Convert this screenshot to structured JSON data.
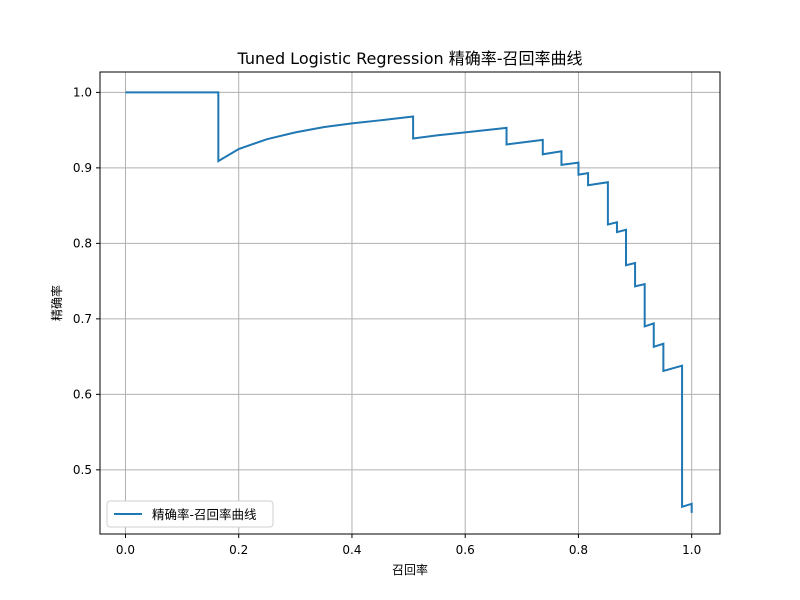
{
  "chart_data": {
    "type": "line",
    "title": "Tuned Logistic Regression 精确率-召回率曲线",
    "xlabel": "召回率",
    "ylabel": "精确率",
    "xlim": [
      -0.045,
      1.05
    ],
    "ylim": [
      0.415,
      1.027
    ],
    "xticks": [
      0.0,
      0.2,
      0.4,
      0.6,
      0.8,
      1.0
    ],
    "xtick_labels": [
      "0.0",
      "0.2",
      "0.4",
      "0.6",
      "0.8",
      "1.0"
    ],
    "yticks": [
      0.5,
      0.6,
      0.7,
      0.8,
      0.9,
      1.0
    ],
    "ytick_labels": [
      "0.5",
      "0.6",
      "0.7",
      "0.8",
      "0.9",
      "1.0"
    ],
    "grid": true,
    "legend_position": "lower-left",
    "line_color": "#1f77b4",
    "series": [
      {
        "name": "精确率-召回率曲线",
        "x": [
          0.0,
          0.164,
          0.164,
          0.2,
          0.25,
          0.3,
          0.35,
          0.4,
          0.45,
          0.508,
          0.508,
          0.55,
          0.6,
          0.673,
          0.673,
          0.737,
          0.737,
          0.77,
          0.77,
          0.8,
          0.8,
          0.817,
          0.817,
          0.852,
          0.852,
          0.868,
          0.868,
          0.884,
          0.884,
          0.9,
          0.9,
          0.917,
          0.917,
          0.933,
          0.933,
          0.95,
          0.95,
          0.983,
          0.983,
          1.0,
          1.0
        ],
        "y": [
          1.0,
          1.0,
          0.909,
          0.925,
          0.938,
          0.947,
          0.954,
          0.959,
          0.963,
          0.968,
          0.939,
          0.943,
          0.947,
          0.953,
          0.931,
          0.937,
          0.918,
          0.922,
          0.904,
          0.907,
          0.891,
          0.893,
          0.877,
          0.881,
          0.825,
          0.828,
          0.815,
          0.818,
          0.771,
          0.774,
          0.743,
          0.746,
          0.69,
          0.694,
          0.663,
          0.667,
          0.631,
          0.638,
          0.451,
          0.455,
          0.443
        ]
      }
    ]
  }
}
